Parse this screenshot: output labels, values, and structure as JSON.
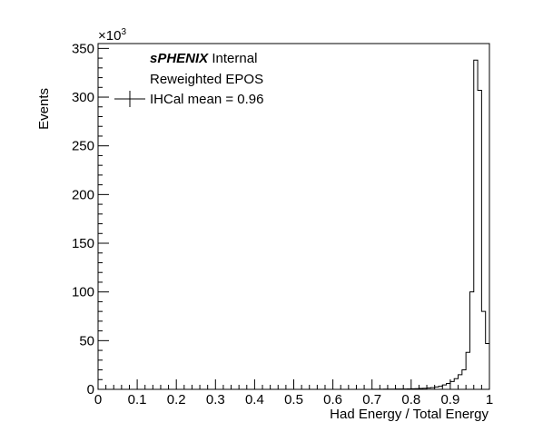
{
  "chart_data": {
    "type": "histogram",
    "xlabel": "Had Energy / Total Energy",
    "ylabel": "Events",
    "y_multiplier": "×10",
    "y_multiplier_exp": "3",
    "xlim": [
      0,
      1
    ],
    "ylim": [
      0,
      355
    ],
    "x_ticks": [
      0,
      0.1,
      0.2,
      0.3,
      0.4,
      0.5,
      0.6,
      0.7,
      0.8,
      0.9,
      1
    ],
    "x_tick_labels": [
      "0",
      "0.1",
      "0.2",
      "0.3",
      "0.4",
      "0.5",
      "0.6",
      "0.7",
      "0.8",
      "0.9",
      "1"
    ],
    "y_ticks": [
      0,
      50,
      100,
      150,
      200,
      250,
      300,
      350
    ],
    "y_tick_labels": [
      "0",
      "50",
      "100",
      "150",
      "200",
      "250",
      "300",
      "350"
    ],
    "bin_width": 0.01,
    "x": [
      0.0,
      0.01,
      0.02,
      0.03,
      0.04,
      0.05,
      0.06,
      0.07,
      0.08,
      0.09,
      0.1,
      0.11,
      0.12,
      0.13,
      0.14,
      0.15,
      0.16,
      0.17,
      0.18,
      0.19,
      0.2,
      0.21,
      0.22,
      0.23,
      0.24,
      0.25,
      0.26,
      0.27,
      0.28,
      0.29,
      0.3,
      0.31,
      0.32,
      0.33,
      0.34,
      0.35,
      0.36,
      0.37,
      0.38,
      0.39,
      0.4,
      0.41,
      0.42,
      0.43,
      0.44,
      0.45,
      0.46,
      0.47,
      0.48,
      0.49,
      0.5,
      0.51,
      0.52,
      0.53,
      0.54,
      0.55,
      0.56,
      0.57,
      0.58,
      0.59,
      0.6,
      0.61,
      0.62,
      0.63,
      0.64,
      0.65,
      0.66,
      0.67,
      0.68,
      0.69,
      0.7,
      0.71,
      0.72,
      0.73,
      0.74,
      0.75,
      0.76,
      0.77,
      0.78,
      0.79,
      0.8,
      0.81,
      0.82,
      0.83,
      0.84,
      0.85,
      0.86,
      0.87,
      0.88,
      0.89,
      0.9,
      0.91,
      0.92,
      0.93,
      0.94,
      0.95,
      0.96,
      0.97,
      0.98,
      0.99
    ],
    "values": [
      0,
      0,
      0,
      0,
      0,
      0,
      0,
      0,
      0,
      0,
      0,
      0,
      0,
      0,
      0,
      0,
      0,
      0,
      0,
      0,
      0,
      0,
      0,
      0,
      0,
      0,
      0,
      0,
      0,
      0,
      0,
      0,
      0,
      0,
      0,
      0,
      0,
      0,
      0,
      0,
      0,
      0,
      0,
      0,
      0,
      0,
      0,
      0,
      0,
      0,
      0,
      0,
      0,
      0,
      0,
      0,
      0,
      0,
      0,
      0,
      0,
      0,
      0,
      0,
      0,
      0,
      0,
      0,
      0,
      0,
      0.1,
      0.1,
      0.1,
      0.2,
      0.2,
      0.2,
      0.3,
      0.3,
      0.4,
      0.5,
      0.6,
      0.7,
      0.9,
      1.1,
      1.4,
      1.8,
      2.4,
      3.2,
      4.5,
      6,
      8,
      11,
      15,
      20,
      38,
      100,
      338,
      307,
      80,
      47
    ],
    "legend": {
      "brand": "sPHENIX",
      "status": "Internal",
      "line2": "Reweighted EPOS",
      "entry": "IHCal mean = 0.96"
    }
  }
}
